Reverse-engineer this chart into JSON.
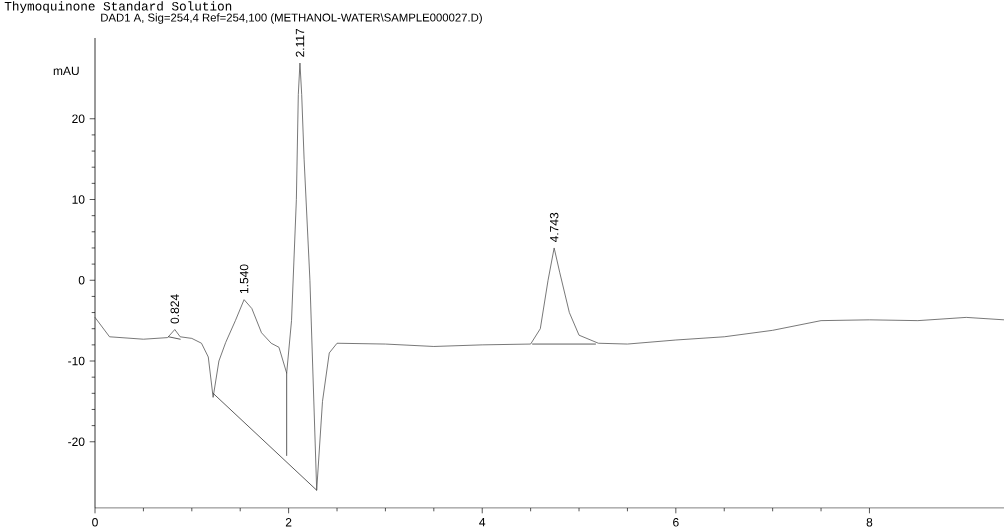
{
  "chart_data": {
    "type": "line",
    "title": "Thymoquinone Standard Solution",
    "subtitle": "DAD1 A, Sig=254,4 Ref=254,100 (METHANOL-WATER\\SAMPLE000027.D)",
    "ylabel": "mAU",
    "xlim": [
      0,
      9.39
    ],
    "ylim": [
      -28.2,
      30
    ],
    "xticks": [
      0,
      2,
      4,
      6,
      8
    ],
    "yticks": [
      -20,
      -10,
      0,
      10,
      20
    ],
    "grid": false,
    "marker": "none",
    "line_style": "solid",
    "series": [
      {
        "color": "#555555",
        "x": [
          0,
          0.15,
          0.5,
          0.75,
          0.824,
          0.88,
          1.0,
          1.1,
          1.17,
          1.22,
          1.28,
          1.35,
          1.45,
          1.54,
          1.62,
          1.72,
          1.82,
          1.9,
          1.98,
          2.03,
          2.08,
          2.1,
          2.117,
          2.135,
          2.16,
          2.22,
          2.29,
          2.35,
          2.42,
          2.5,
          3,
          3.5,
          4,
          4.5,
          4.6,
          4.68,
          4.743,
          4.8,
          4.9,
          5.0,
          5.2,
          5.5,
          6,
          6.5,
          7,
          7.5,
          8,
          8.5,
          9,
          9.39
        ],
        "values": [
          -4.6,
          -7.0,
          -7.3,
          -7.1,
          -6.1,
          -7.0,
          -7.2,
          -7.8,
          -9.5,
          -14.5,
          -10,
          -7.7,
          -5,
          -2.4,
          -3.5,
          -6.5,
          -7.8,
          -8.3,
          -11.5,
          -5,
          10,
          23,
          26.9,
          23,
          15,
          0,
          -26,
          -15,
          -9,
          -7.8,
          -7.9,
          -8.2,
          -8,
          -7.9,
          -6,
          0,
          4.0,
          1,
          -4,
          -6.8,
          -7.8,
          -7.9,
          -7.4,
          -7.0,
          -6.2,
          -5,
          -4.9,
          -5,
          -4.6,
          -4.9
        ]
      },
      {
        "color": "#333333",
        "x": [
          1.22,
          2.29
        ],
        "values": [
          -14,
          -26
        ]
      },
      {
        "color": "#333333",
        "x": [
          1.98,
          1.98
        ],
        "values": [
          -11.5,
          -21.7
        ]
      },
      {
        "color": "#333333",
        "x": [
          4.52,
          5.17
        ],
        "values": [
          -7.9,
          -7.9
        ]
      },
      {
        "color": "#333333",
        "x": [
          0.76,
          0.88
        ],
        "values": [
          -7.0,
          -7.3
        ]
      }
    ],
    "annotations": [
      {
        "text": "0.824",
        "x": 0.824,
        "y": -6.1
      },
      {
        "text": "1.540",
        "x": 1.54,
        "y": -2.4
      },
      {
        "text": "2.117",
        "x": 2.117,
        "y": 26.9
      },
      {
        "text": "4.743",
        "x": 4.743,
        "y": 4.0
      }
    ]
  }
}
